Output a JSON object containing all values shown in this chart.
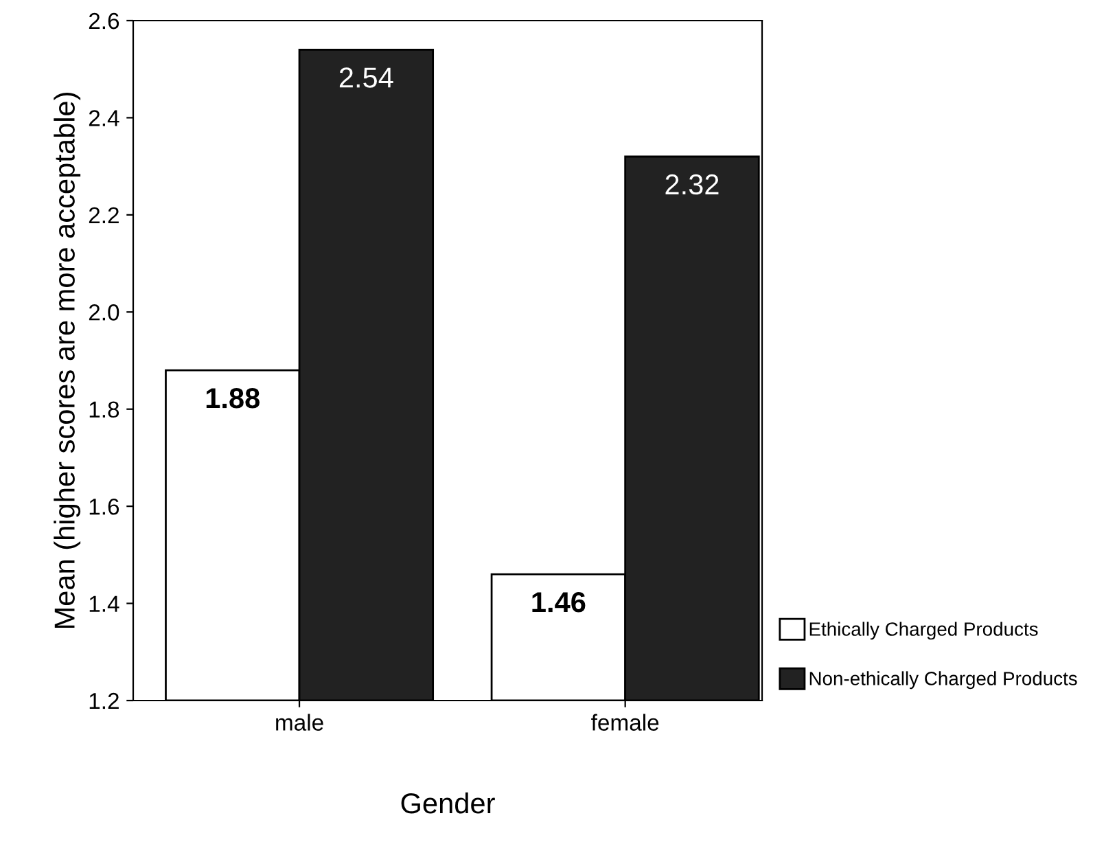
{
  "chart_data": {
    "type": "bar",
    "xlabel": "Gender",
    "ylabel": "Mean (higher scores are more acceptable)",
    "categories": [
      "male",
      "female"
    ],
    "series": [
      {
        "name": "Ethically Charged Products",
        "color": "#ffffff",
        "values": [
          1.88,
          1.46
        ]
      },
      {
        "name": "Non-ethically Charged Products",
        "color": "#222222",
        "values": [
          2.54,
          2.32
        ]
      }
    ],
    "ylim": [
      1.2,
      2.6
    ],
    "yticks": [
      {
        "value": 1.2,
        "label": "1.2"
      },
      {
        "value": 1.4,
        "label": "1.4"
      },
      {
        "value": 1.6,
        "label": "1.6"
      },
      {
        "value": 1.8,
        "label": "1.8"
      },
      {
        "value": 2.0,
        "label": "2.0"
      },
      {
        "value": 2.2,
        "label": "2.2"
      },
      {
        "value": 2.4,
        "label": "2.4"
      },
      {
        "value": 2.6,
        "label": "2.6"
      }
    ],
    "grid": false,
    "legend": "right",
    "data_labels": true
  }
}
